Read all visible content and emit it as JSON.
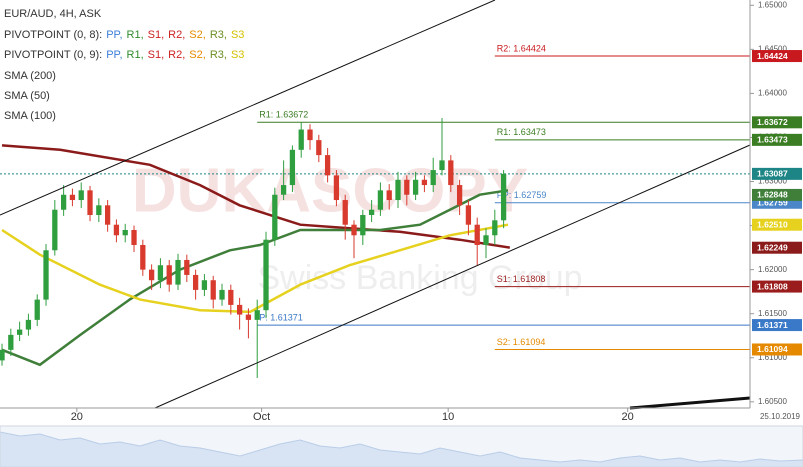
{
  "chart_data": {
    "type": "candlestick",
    "legend": {
      "header": "EUR/AUD, 4H, ASK",
      "pivots": [
        {
          "name": "PIVOTPOINT (0, 8):",
          "items": [
            {
              "text": "PP,",
              "color": "#3b7dd8"
            },
            {
              "text": "R1,",
              "color": "#2e8b2e"
            },
            {
              "text": "S1,",
              "color": "#cc2222"
            },
            {
              "text": "R2,",
              "color": "#cc2222"
            },
            {
              "text": "S2,",
              "color": "#e58a00"
            },
            {
              "text": "R3,",
              "color": "#6b8e23"
            },
            {
              "text": "S3",
              "color": "#d4c000"
            }
          ]
        },
        {
          "name": "PIVOTPOINT (0, 9):",
          "items": [
            {
              "text": "PP,",
              "color": "#3b7dd8"
            },
            {
              "text": "R1,",
              "color": "#2e8b2e"
            },
            {
              "text": "S1,",
              "color": "#cc2222"
            },
            {
              "text": "R2,",
              "color": "#cc2222"
            },
            {
              "text": "S2,",
              "color": "#e58a00"
            },
            {
              "text": "R3,",
              "color": "#6b8e23"
            },
            {
              "text": "S3",
              "color": "#d4c000"
            }
          ]
        }
      ]
    },
    "watermark": {
      "title": "DUKASCOPY",
      "subtitle": "Swiss Banking Group"
    },
    "date_label": "25.10.2019",
    "up_color": "#2f9e3f",
    "down_color": "#d83a2e",
    "x": [
      0,
      1,
      2,
      3,
      4,
      5,
      6,
      7,
      8,
      9,
      10,
      11,
      12,
      13,
      14,
      15,
      16,
      17,
      18,
      19,
      20,
      21,
      22,
      23,
      24,
      25,
      26,
      27,
      28,
      29,
      30,
      31,
      32,
      33,
      34,
      35,
      36,
      37,
      38,
      39,
      40,
      41,
      42,
      43,
      44,
      45,
      46,
      47,
      48,
      49,
      50,
      51,
      52,
      53,
      54,
      55,
      56,
      57
    ],
    "open": [
      1.6097,
      1.6109,
      1.6126,
      1.6132,
      1.6143,
      1.6166,
      1.6222,
      1.6268,
      1.6285,
      1.6279,
      1.629,
      1.6262,
      1.6273,
      1.6251,
      1.6239,
      1.6245,
      1.6228,
      1.62,
      1.6188,
      1.6205,
      1.6183,
      1.6211,
      1.6194,
      1.6177,
      1.6188,
      1.6166,
      1.6177,
      1.616,
      1.6149,
      1.6143,
      1.6154,
      1.6234,
      1.6285,
      1.6296,
      1.6336,
      1.6359,
      1.6347,
      1.633,
      1.6307,
      1.6279,
      1.6251,
      1.6239,
      1.6262,
      1.6268,
      1.629,
      1.6279,
      1.6302,
      1.6285,
      1.6302,
      1.6296,
      1.6313,
      1.6324,
      1.6296,
      1.6273,
      1.6251,
      1.6228,
      1.6239,
      1.6256
    ],
    "high": [
      1.6116,
      1.6133,
      1.6141,
      1.615,
      1.6172,
      1.6229,
      1.6279,
      1.6296,
      1.6292,
      1.6299,
      1.6295,
      1.6281,
      1.6279,
      1.6257,
      1.6252,
      1.625,
      1.6234,
      1.6206,
      1.6213,
      1.6211,
      1.6218,
      1.6217,
      1.62,
      1.6195,
      1.6193,
      1.6184,
      1.6183,
      1.6168,
      1.6156,
      1.6166,
      1.6243,
      1.6293,
      1.6324,
      1.6341,
      1.6367,
      1.6365,
      1.6353,
      1.6338,
      1.6313,
      1.6285,
      1.6256,
      1.6268,
      1.6279,
      1.6299,
      1.6297,
      1.6311,
      1.6307,
      1.6311,
      1.6307,
      1.6327,
      1.6372,
      1.633,
      1.6302,
      1.6279,
      1.6259,
      1.6247,
      1.6268,
      1.6313
    ],
    "low": [
      1.6091,
      1.6102,
      1.6119,
      1.6125,
      1.6136,
      1.6159,
      1.6216,
      1.6261,
      1.6272,
      1.627,
      1.6255,
      1.6254,
      1.6243,
      1.6231,
      1.6231,
      1.622,
      1.6193,
      1.6177,
      1.6179,
      1.6175,
      1.6177,
      1.6186,
      1.6166,
      1.617,
      1.6156,
      1.6159,
      1.6149,
      1.6132,
      1.6122,
      1.6077,
      1.6145,
      1.6227,
      1.6279,
      1.6288,
      1.6327,
      1.6336,
      1.6322,
      1.6299,
      1.6272,
      1.6234,
      1.6213,
      1.6228,
      1.6254,
      1.6261,
      1.6268,
      1.627,
      1.6273,
      1.6279,
      1.6288,
      1.6288,
      1.6307,
      1.6288,
      1.6262,
      1.6239,
      1.6205,
      1.6213,
      1.6228,
      1.6247
    ],
    "close": [
      1.6109,
      1.6126,
      1.6132,
      1.6143,
      1.6166,
      1.6222,
      1.6268,
      1.6285,
      1.6279,
      1.629,
      1.6262,
      1.6273,
      1.6251,
      1.6239,
      1.6245,
      1.6228,
      1.62,
      1.6188,
      1.6205,
      1.6183,
      1.6211,
      1.6194,
      1.6177,
      1.6188,
      1.6166,
      1.6177,
      1.616,
      1.6149,
      1.6143,
      1.6154,
      1.6234,
      1.6285,
      1.6296,
      1.6336,
      1.6359,
      1.6347,
      1.633,
      1.6307,
      1.6279,
      1.6251,
      1.6239,
      1.6262,
      1.6268,
      1.629,
      1.6279,
      1.6302,
      1.6285,
      1.6302,
      1.6296,
      1.6313,
      1.6324,
      1.6296,
      1.6273,
      1.6251,
      1.6228,
      1.6239,
      1.6256,
      1.63087
    ],
    "smas": [
      {
        "name": "SMA (200)",
        "color": "#8b1a1a",
        "x": [
          0,
          6.6,
          16.8,
          22.5,
          27,
          33.9,
          39.5,
          45.2,
          52,
          57.7
        ],
        "values": [
          1.6341,
          1.6336,
          1.6319,
          1.6296,
          1.6273,
          1.6251,
          1.6247,
          1.6243,
          1.6234,
          1.6225
        ],
        "box_value": 1.62249,
        "box_label": "1.62249"
      },
      {
        "name": "SMA (50)",
        "color": "#3f7f3a",
        "x": [
          0,
          4.3,
          8.9,
          14.5,
          20.2,
          25.9,
          29.3,
          33.9,
          38.4,
          43,
          47.5,
          50.9,
          54.3,
          57.5
        ],
        "values": [
          1.6109,
          1.6092,
          1.6126,
          1.6166,
          1.62,
          1.6222,
          1.6228,
          1.6245,
          1.6245,
          1.6245,
          1.6251,
          1.6268,
          1.6285,
          1.629
        ],
        "box_value": 1.62848,
        "box_label": "1.62848"
      },
      {
        "name": "SMA (100)",
        "color": "#e6d21e",
        "x": [
          0,
          4.3,
          11.1,
          15.7,
          22.5,
          28.2,
          33.9,
          39.5,
          45.2,
          50.9,
          57.5
        ],
        "values": [
          1.6245,
          1.6217,
          1.6183,
          1.6166,
          1.6154,
          1.6152,
          1.6183,
          1.6205,
          1.6222,
          1.6239,
          1.6251
        ],
        "box_value": 1.6251,
        "box_label": "1.62510"
      }
    ],
    "levels": [
      {
        "label": "R2: 1.64424",
        "value": 1.64424,
        "box_label": "1.64424",
        "color": "#c8191e",
        "x_start": 56
      },
      {
        "label": "R1: 1.63672",
        "value": 1.63672,
        "box_label": "1.63672",
        "color": "#3a7d22",
        "x_start": 29
      },
      {
        "label": "R1: 1.63473",
        "value": 1.63473,
        "box_label": "1.63473",
        "color": "#3a7d22",
        "x_start": 56
      },
      {
        "label": "PP: 1.62759",
        "value": 1.62759,
        "box_label": "1.62759",
        "color": "#4a86c8",
        "x_start": 56
      },
      {
        "label": "S1: 1.61808",
        "value": 1.61808,
        "box_label": "1.61808",
        "color": "#9b1c1c",
        "x_start": 56
      },
      {
        "label": "P: 1.61371",
        "value": 1.61371,
        "box_label": "1.61371",
        "color": "#3a78c8",
        "x_start": 29
      },
      {
        "label": "S2: 1.61094",
        "value": 1.61094,
        "box_label": "1.61094",
        "color": "#e58a00",
        "x_start": 56
      }
    ],
    "current": {
      "value": 1.63087,
      "label": "1.63087",
      "color": "#1d8585"
    },
    "xlim": [
      -0.23,
      85
    ],
    "xticks": [
      {
        "value": 8.5,
        "label": "20"
      },
      {
        "value": 29.5,
        "label": "Oct"
      },
      {
        "value": 50.7,
        "label": "10"
      },
      {
        "value": 71.1,
        "label": "20"
      }
    ],
    "ylim": [
      1.6043,
      1.6506
    ],
    "yticks": [
      {
        "value": 1.605,
        "label": "1.60500"
      },
      {
        "value": 1.61,
        "label": "1.61000"
      },
      {
        "value": 1.615,
        "label": "1.61500"
      },
      {
        "value": 1.62,
        "label": "1.62000"
      },
      {
        "value": 1.625,
        "label": "1.62500"
      },
      {
        "value": 1.63,
        "label": "1.63000"
      },
      {
        "value": 1.635,
        "label": "1.63500"
      },
      {
        "value": 1.64,
        "label": "1.64000"
      },
      {
        "value": 1.645,
        "label": "1.64500"
      },
      {
        "value": 1.65,
        "label": "1.65000"
      }
    ]
  }
}
